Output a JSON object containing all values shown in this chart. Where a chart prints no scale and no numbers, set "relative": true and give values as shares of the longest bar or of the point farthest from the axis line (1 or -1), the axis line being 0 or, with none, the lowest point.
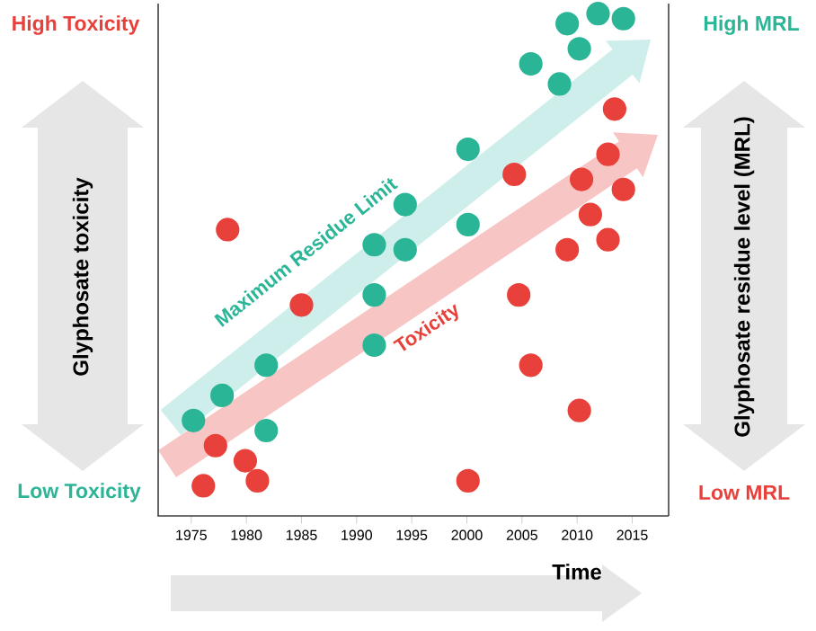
{
  "chart_data": {
    "type": "scatter",
    "xlabel": "Time",
    "ylabel": "Glyphosate toxicity",
    "y2label": "Glyphosate residue level (MRL)",
    "relative": true,
    "marker": "circle",
    "xlim": [
      1972,
      2018.3
    ],
    "xticks": [
      1975,
      1980,
      1985,
      1990,
      1995,
      2000,
      2005,
      2010,
      2015
    ],
    "annotations": [
      "High Toxicity",
      "Low Toxicity",
      "High MRL",
      "Low MRL"
    ],
    "series": [
      {
        "name": "Toxicity",
        "color": "#e8403a",
        "x": [
          1976.1,
          1977.2,
          1979.9,
          1981.0,
          1978.3,
          1985.0,
          2000.1,
          2004.3,
          2004.7,
          2005.8,
          2009.1,
          2010.2,
          2010.4,
          2011.2,
          2012.8,
          2012.8,
          2013.4,
          2014.2
        ],
        "values": [
          0.06,
          0.14,
          0.11,
          0.07,
          0.57,
          0.42,
          0.07,
          0.68,
          0.44,
          0.3,
          0.53,
          0.21,
          0.67,
          0.6,
          0.55,
          0.72,
          0.81,
          0.65
        ]
      },
      {
        "name": "Maximum Residue Limit",
        "color": "#2bb597",
        "x": [
          1975.2,
          1977.8,
          1981.8,
          1981.8,
          1991.6,
          1991.6,
          1991.6,
          1994.4,
          1994.4,
          2000.1,
          2000.1,
          2005.8,
          2008.4,
          2009.1,
          2010.2,
          2011.9,
          2014.2
        ],
        "values": [
          0.19,
          0.24,
          0.3,
          0.17,
          0.54,
          0.44,
          0.34,
          0.62,
          0.53,
          0.73,
          0.58,
          0.9,
          0.86,
          0.98,
          0.93,
          1.0,
          0.99
        ]
      }
    ]
  }
}
